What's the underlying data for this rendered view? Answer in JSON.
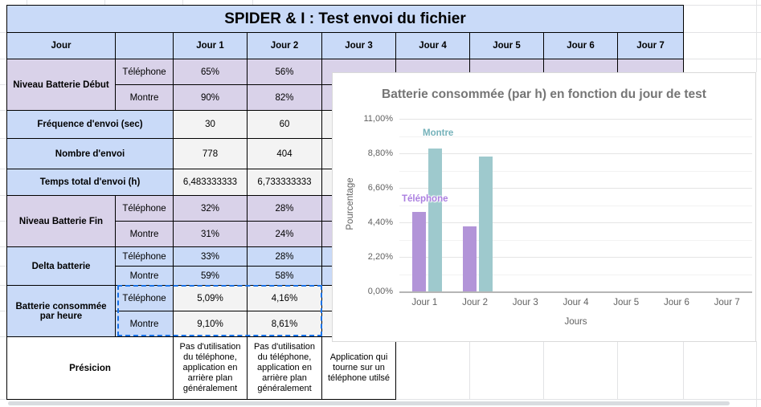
{
  "sheet": {
    "title": "SPIDER & I  :  Test envoi du fichier",
    "header": {
      "label": "Jour",
      "days": [
        "Jour 1",
        "Jour 2",
        "Jour 3",
        "Jour 4",
        "Jour 5",
        "Jour 6",
        "Jour 7"
      ]
    },
    "sublabels": {
      "telephone": "Téléphone",
      "montre": "Montre"
    },
    "rows": {
      "batterie_debut": {
        "label": "Niveau Batterie Début",
        "telephone": [
          "65%",
          "56%"
        ],
        "montre": [
          "90%",
          "82%"
        ]
      },
      "frequence": {
        "label": "Fréquence d'envoi (sec)",
        "values": [
          "30",
          "60"
        ]
      },
      "nombre": {
        "label": "Nombre d'envoi",
        "values": [
          "778",
          "404"
        ]
      },
      "temps": {
        "label": "Temps total d'envoi (h)",
        "values": [
          "6,483333333",
          "6,733333333"
        ]
      },
      "batterie_fin": {
        "label": "Niveau Batterie Fin",
        "telephone": [
          "32%",
          "28%"
        ],
        "montre": [
          "31%",
          "24%"
        ]
      },
      "delta": {
        "label": "Delta batterie",
        "telephone": [
          "33%",
          "28%"
        ],
        "montre": [
          "59%",
          "58%"
        ]
      },
      "conso": {
        "label": "Batterie consommée par heure",
        "telephone": [
          "5,09%",
          "4,16%"
        ],
        "montre": [
          "9,10%",
          "8,61%"
        ]
      },
      "presicion": {
        "label": "Présicion",
        "values": [
          "Pas d'utilisation du téléphone, application en arrière plan généralement",
          "Pas d'utilisation du téléphone, application en arrière plan généralement",
          "Application qui tourne sur un téléphone utilsé"
        ]
      }
    },
    "colors": {
      "header_blue": "#c9daf8",
      "row_purple": "#d9d2e9",
      "value_gray": "#f3f3f3",
      "selection_blue": "#1a73e8"
    }
  },
  "chart_data": {
    "type": "bar",
    "title": "Batterie consommée (par h) en fonction du jour de test",
    "xlabel": "Jours",
    "ylabel": "Pourcentage",
    "categories": [
      "Jour 1",
      "Jour 2",
      "Jour 3",
      "Jour 4",
      "Jour 5",
      "Jour 6",
      "Jour 7"
    ],
    "series": [
      {
        "name": "Téléphone",
        "color": "#b294d8",
        "label_color": "#ab7fe0",
        "values": [
          5.09,
          4.16,
          null,
          null,
          null,
          null,
          null
        ]
      },
      {
        "name": "Montre",
        "color": "#9ec9cd",
        "label_color": "#75b2ba",
        "values": [
          9.1,
          8.61,
          null,
          null,
          null,
          null,
          null
        ]
      }
    ],
    "ylim": [
      0,
      11
    ],
    "yticks": [
      0,
      2.2,
      4.4,
      6.6,
      8.8,
      11
    ],
    "ytick_labels": [
      "0,00%",
      "2,20%",
      "4,40%",
      "6,60%",
      "8,80%",
      "11,00%"
    ],
    "grid": "major+minor horizontal",
    "legend_position": "series labels near first bars"
  }
}
